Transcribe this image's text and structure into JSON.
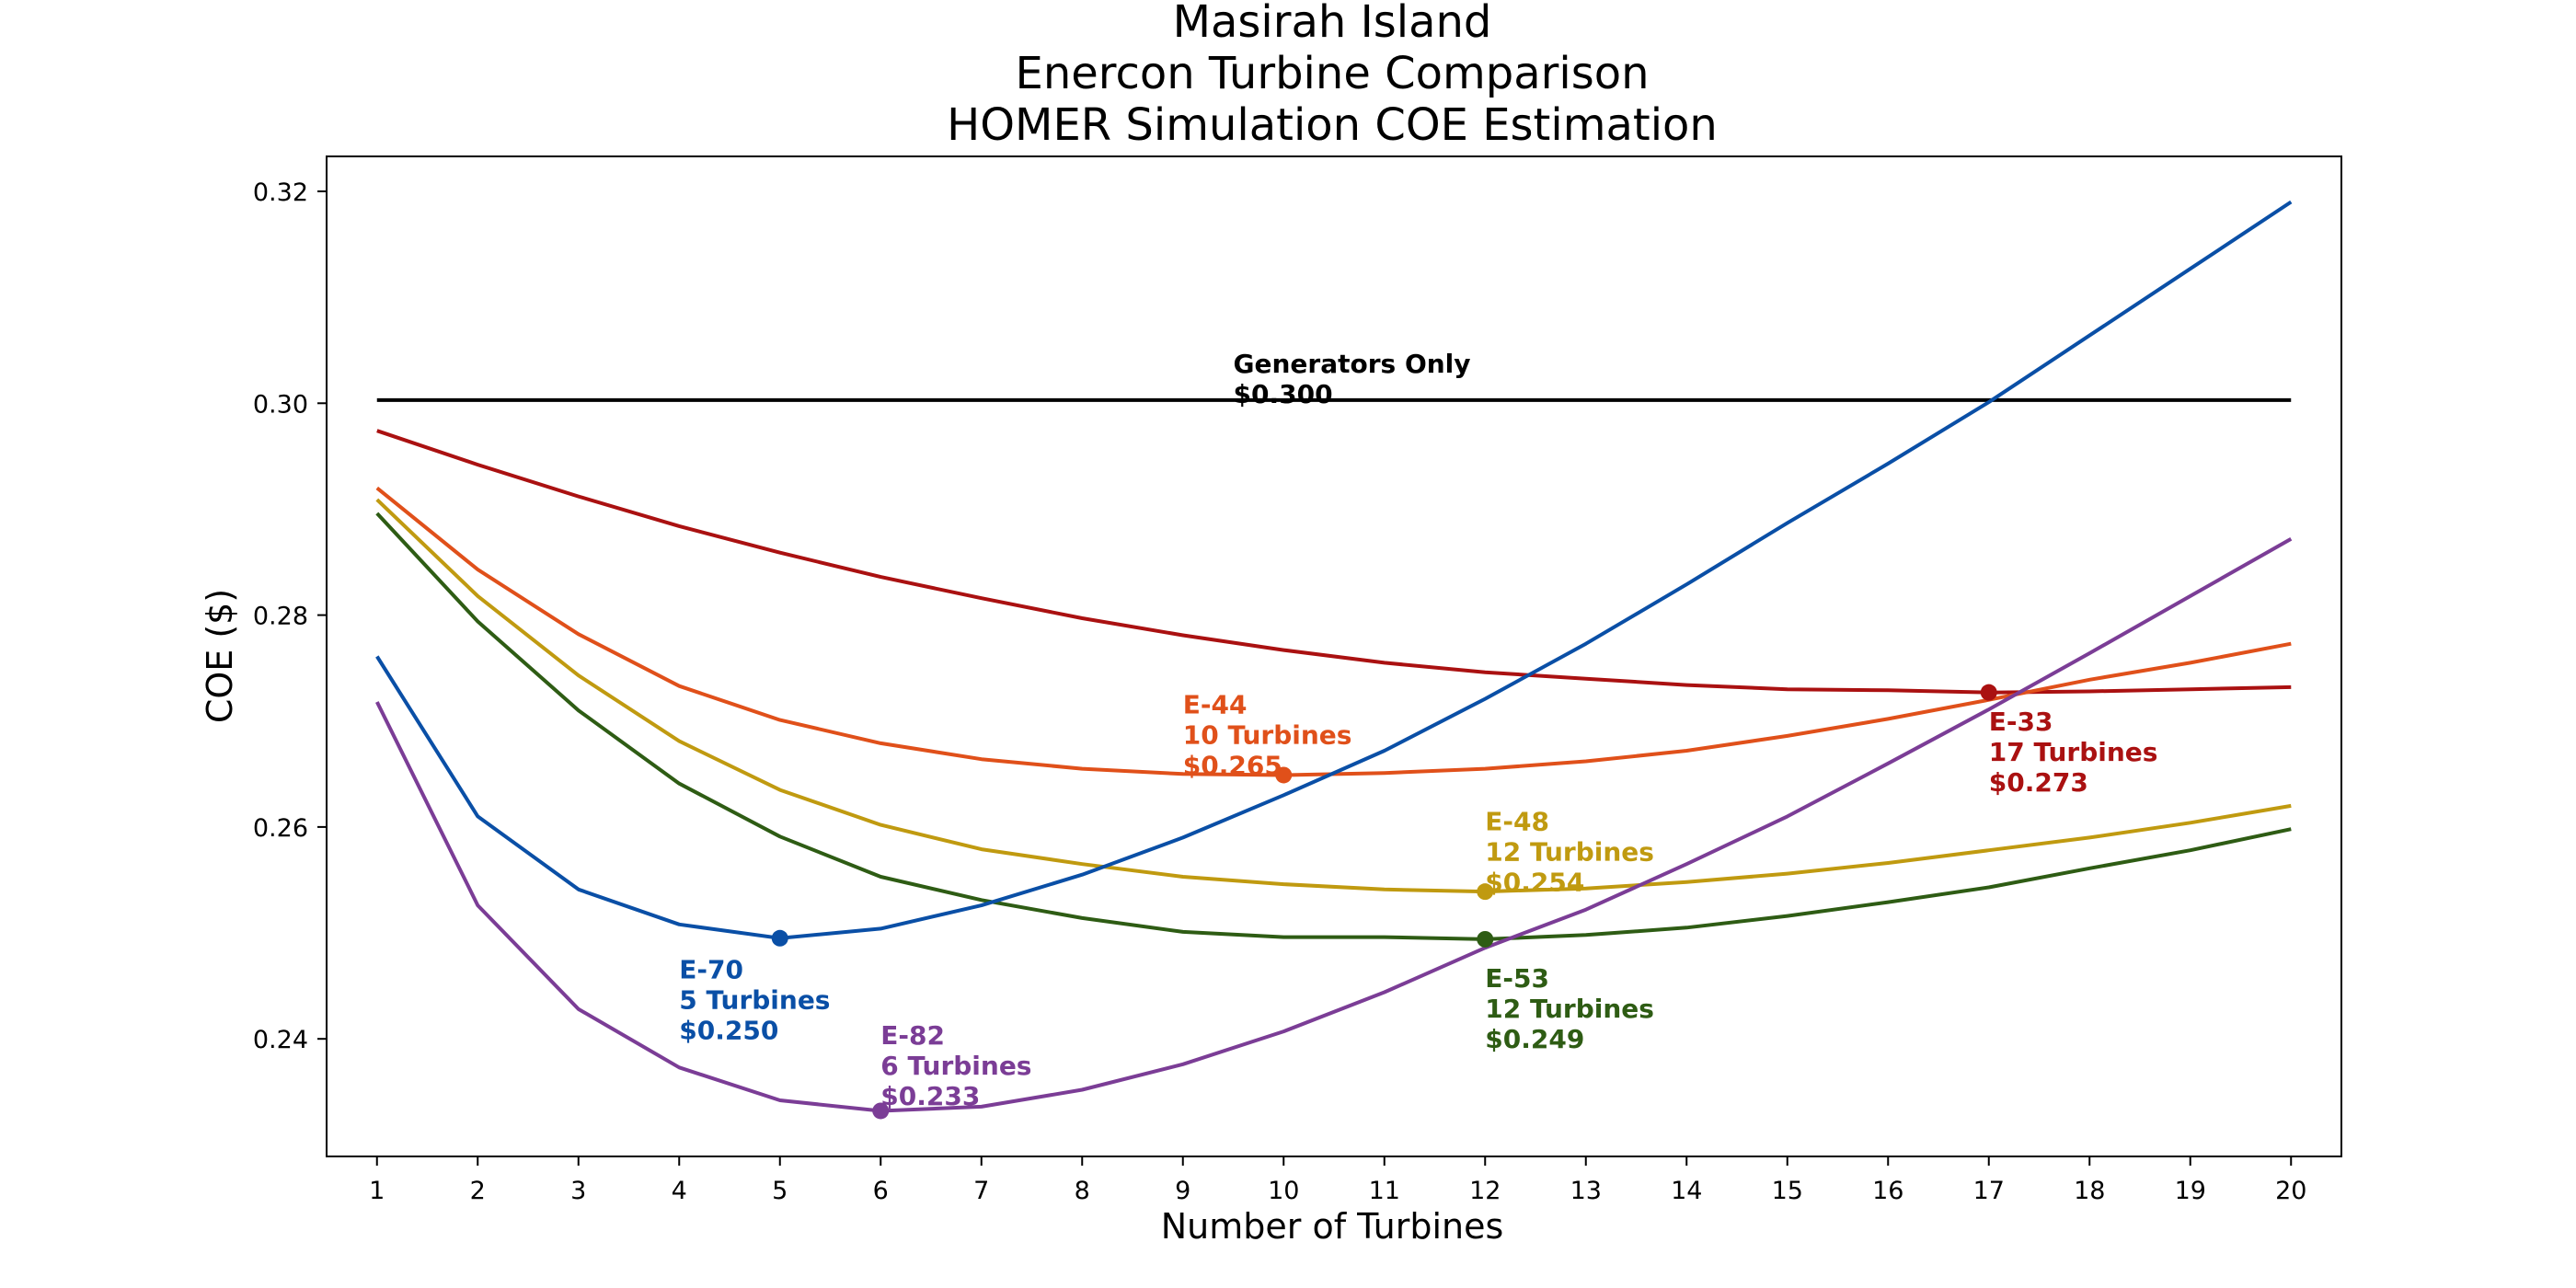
{
  "chart_data": {
    "type": "line",
    "title": [
      "Masirah Island",
      "Enercon Turbine Comparison",
      "HOMER Simulation COE Estimation"
    ],
    "xlabel": "Number of Turbines",
    "ylabel": "COE ($)",
    "xlim": [
      0.5,
      20.5
    ],
    "ylim": [
      0.2289,
      0.3233
    ],
    "xticks": [
      1,
      2,
      3,
      4,
      5,
      6,
      7,
      8,
      9,
      10,
      11,
      12,
      13,
      14,
      15,
      16,
      17,
      18,
      19,
      20
    ],
    "yticks": [
      0.24,
      0.26,
      0.28,
      0.3,
      0.32
    ],
    "ytick_labels": [
      "0.24",
      "0.26",
      "0.28",
      "0.30",
      "0.32"
    ],
    "grid": false,
    "x": [
      1,
      2,
      3,
      4,
      5,
      6,
      7,
      8,
      9,
      10,
      11,
      12,
      13,
      14,
      15,
      16,
      17,
      18,
      19,
      20
    ],
    "reference": {
      "value": 0.3003,
      "x_range": [
        1,
        20
      ],
      "color": "#000000",
      "label": [
        "Generators Only",
        "$0.300"
      ],
      "label_at": [
        9.5,
        0.3029
      ]
    },
    "series": [
      {
        "id": "e33",
        "color": "#aa1111",
        "values": [
          0.2974,
          0.2942,
          0.2912,
          0.2884,
          0.2859,
          0.2836,
          0.2816,
          0.2797,
          0.2781,
          0.2767,
          0.2755,
          0.2746,
          0.274,
          0.2734,
          0.273,
          0.2729,
          0.2727,
          0.2728,
          0.273,
          0.2732
        ],
        "marker": {
          "x": 17,
          "y": 0.2727
        },
        "label": [
          "E-33",
          "17 Turbines",
          "$0.273"
        ],
        "label_at": [
          17.0,
          0.2691
        ]
      },
      {
        "id": "e44",
        "color": "#e0501a",
        "values": [
          0.292,
          0.2843,
          0.2782,
          0.2733,
          0.2701,
          0.2679,
          0.2664,
          0.2655,
          0.265,
          0.2649,
          0.2651,
          0.2655,
          0.2662,
          0.2672,
          0.2686,
          0.2702,
          0.272,
          0.2739,
          0.2755,
          0.2773
        ],
        "marker": {
          "x": 10,
          "y": 0.2649
        },
        "label": [
          "E-44",
          "10 Turbines",
          "$0.265"
        ],
        "label_at": [
          9.0,
          0.2707
        ]
      },
      {
        "id": "e48",
        "color": "#c09a10",
        "values": [
          0.2909,
          0.2818,
          0.2743,
          0.2681,
          0.2635,
          0.2602,
          0.2579,
          0.2565,
          0.2553,
          0.2546,
          0.2541,
          0.2539,
          0.2542,
          0.2548,
          0.2556,
          0.2566,
          0.2578,
          0.259,
          0.2604,
          0.262
        ],
        "marker": {
          "x": 12,
          "y": 0.2539
        },
        "label": [
          "E-48",
          "12 Turbines",
          "$0.254"
        ],
        "label_at": [
          12.0,
          0.2597
        ]
      },
      {
        "id": "e53",
        "color": "#2e5c14",
        "values": [
          0.2896,
          0.2794,
          0.271,
          0.2641,
          0.2591,
          0.2553,
          0.2531,
          0.2514,
          0.2501,
          0.2496,
          0.2496,
          0.2494,
          0.2498,
          0.2505,
          0.2516,
          0.2529,
          0.2543,
          0.2561,
          0.2578,
          0.2598
        ],
        "marker": {
          "x": 12,
          "y": 0.2494
        },
        "label": [
          "E-53",
          "12 Turbines",
          "$0.249"
        ],
        "label_at": [
          12.0,
          0.2449
        ]
      },
      {
        "id": "e70",
        "color": "#0a4fa6",
        "values": [
          0.2761,
          0.261,
          0.2541,
          0.2508,
          0.2495,
          0.2504,
          0.2526,
          0.2555,
          0.259,
          0.263,
          0.2672,
          0.2721,
          0.2773,
          0.2829,
          0.2887,
          0.2943,
          0.3001,
          0.3064,
          0.3127,
          0.319
        ],
        "marker": {
          "x": 5,
          "y": 0.2495
        },
        "label": [
          "E-70",
          "5 Turbines",
          "$0.250"
        ],
        "label_at": [
          4.0,
          0.2457
        ]
      },
      {
        "id": "e82",
        "color": "#7b3d96",
        "values": [
          0.2718,
          0.2526,
          0.2428,
          0.2373,
          0.2342,
          0.2332,
          0.2336,
          0.2352,
          0.2376,
          0.2407,
          0.2444,
          0.2486,
          0.2522,
          0.2565,
          0.261,
          0.266,
          0.2711,
          0.2764,
          0.2818,
          0.2872
        ],
        "marker": {
          "x": 6,
          "y": 0.2332
        },
        "label": [
          "E-82",
          "6 Turbines",
          "$0.233"
        ],
        "label_at": [
          6.0,
          0.2395
        ]
      }
    ]
  }
}
